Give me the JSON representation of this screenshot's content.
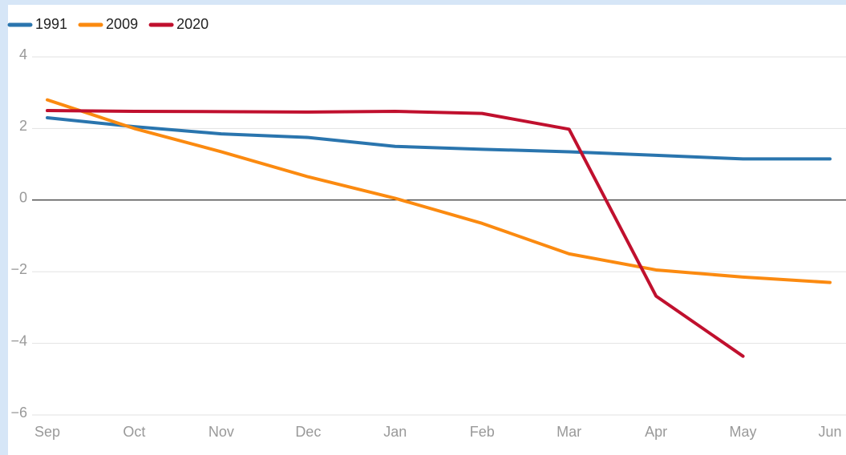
{
  "chart_data": {
    "type": "line",
    "categories": [
      "Sep",
      "Oct",
      "Nov",
      "Dec",
      "Jan",
      "Feb",
      "Mar",
      "Apr",
      "May",
      "Jun"
    ],
    "series": [
      {
        "name": "1991",
        "color": "#2a75ae",
        "values": [
          2.3,
          2.05,
          1.85,
          1.75,
          1.5,
          1.42,
          1.35,
          1.25,
          1.15,
          1.15
        ]
      },
      {
        "name": "2009",
        "color": "#fb8a10",
        "values": [
          2.8,
          2.0,
          1.35,
          0.65,
          0.05,
          -0.65,
          -1.5,
          -1.95,
          -2.15,
          -2.3
        ]
      },
      {
        "name": "2020",
        "color": "#c0102e",
        "values": [
          2.5,
          2.48,
          2.47,
          2.46,
          2.48,
          2.42,
          1.98,
          -2.68,
          -4.36,
          null
        ]
      }
    ],
    "ylim": [
      -6,
      4
    ],
    "yticks": [
      {
        "value": -6,
        "label": "−6"
      },
      {
        "value": -4,
        "label": "−4"
      },
      {
        "value": -2,
        "label": "−2"
      },
      0,
      2,
      4
    ],
    "grid": true
  }
}
